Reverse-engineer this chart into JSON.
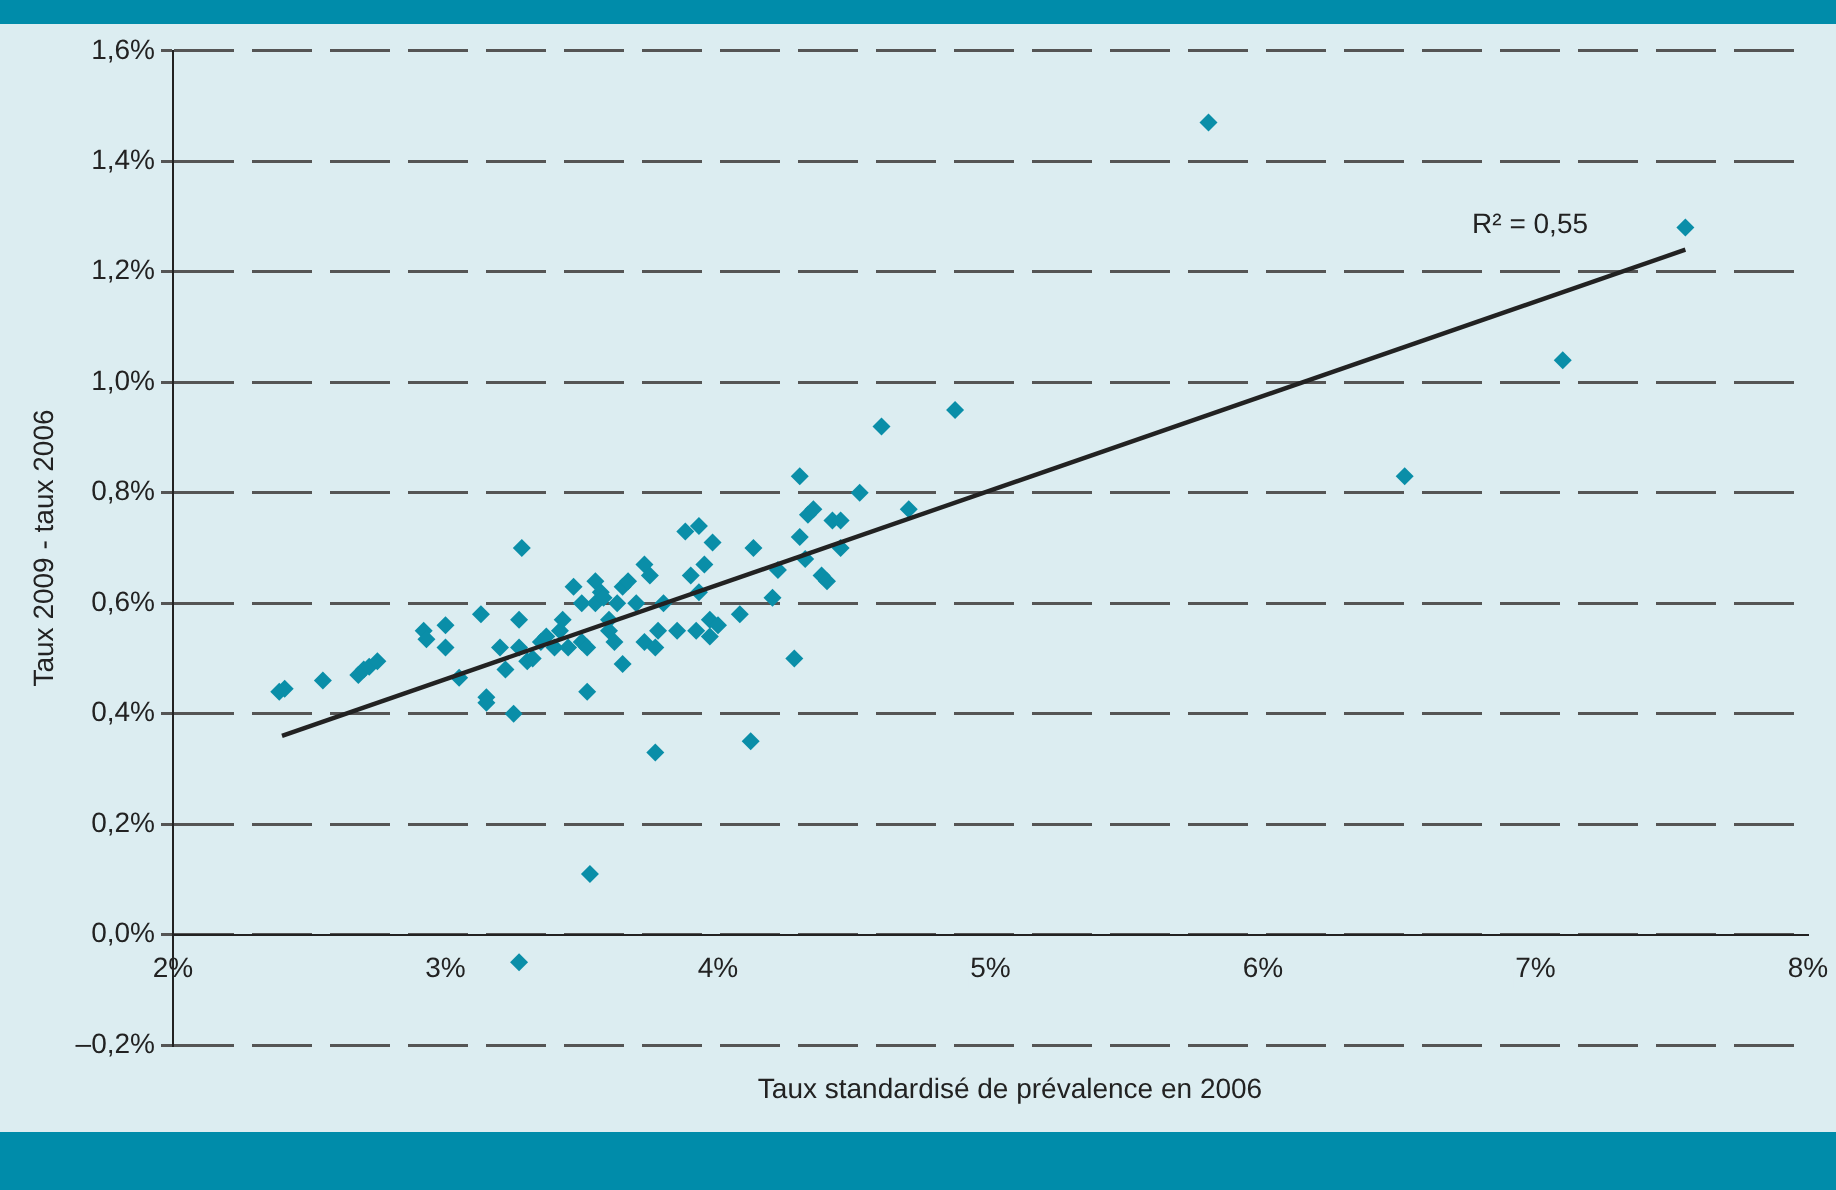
{
  "chart_data": {
    "type": "scatter",
    "xlabel": "Taux standardisé de prévalence en 2006",
    "ylabel": "Taux 2009 - taux 2006",
    "xlim": [
      2,
      8
    ],
    "xticks": [
      {
        "value": 2,
        "label": "2%"
      },
      {
        "value": 3,
        "label": "3%"
      },
      {
        "value": 4,
        "label": "4%"
      },
      {
        "value": 5,
        "label": "5%"
      },
      {
        "value": 6,
        "label": "6%"
      },
      {
        "value": 7,
        "label": "7%"
      },
      {
        "value": 8,
        "label": "8%"
      }
    ],
    "ylim": [
      -0.2,
      1.6
    ],
    "yticks": [
      {
        "value": -0.2,
        "label": "–0,2%"
      },
      {
        "value": 0,
        "label": "0,0%"
      },
      {
        "value": 0.2,
        "label": "0,2%"
      },
      {
        "value": 0.4,
        "label": "0,4%"
      },
      {
        "value": 0.6,
        "label": "0,6%"
      },
      {
        "value": 0.8,
        "label": "0,8%"
      },
      {
        "value": 1.0,
        "label": "1,0%"
      },
      {
        "value": 1.2,
        "label": "1,2%"
      },
      {
        "value": 1.4,
        "label": "1,4%"
      },
      {
        "value": 1.6,
        "label": "1,6%"
      }
    ],
    "grid": "y",
    "legend": false,
    "marker": "diamond",
    "series": [
      {
        "type": "scatter",
        "color": "#0a8ea8",
        "x": [
          2.39,
          2.41,
          2.55,
          2.68,
          2.7,
          2.72,
          2.75,
          2.92,
          2.93,
          3.0,
          3.0,
          3.05,
          3.13,
          3.15,
          3.15,
          3.2,
          3.22,
          3.25,
          3.27,
          3.27,
          3.28,
          3.3,
          3.32,
          3.35,
          3.37,
          3.4,
          3.42,
          3.43,
          3.45,
          3.47,
          3.5,
          3.5,
          3.52,
          3.52,
          3.53,
          3.27,
          3.55,
          3.55,
          3.57,
          3.58,
          3.6,
          3.6,
          3.62,
          3.63,
          3.65,
          3.65,
          3.67,
          3.7,
          3.73,
          3.73,
          3.75,
          3.77,
          3.77,
          3.78,
          3.8,
          3.85,
          3.88,
          3.9,
          3.92,
          3.93,
          3.93,
          3.95,
          3.97,
          3.97,
          3.98,
          4.0,
          4.08,
          4.12,
          4.13,
          4.2,
          4.22,
          4.28,
          4.3,
          4.3,
          4.32,
          4.33,
          4.35,
          4.38,
          4.4,
          4.42,
          4.45,
          4.45,
          4.52,
          4.6,
          4.7,
          4.87,
          5.8,
          6.52,
          7.1,
          7.55
        ],
        "values": [
          0.44,
          0.445,
          0.46,
          0.47,
          0.48,
          0.485,
          0.495,
          0.55,
          0.535,
          0.56,
          0.52,
          0.465,
          0.58,
          0.43,
          0.42,
          0.52,
          0.48,
          0.4,
          0.57,
          0.52,
          0.7,
          0.495,
          0.5,
          0.53,
          0.54,
          0.52,
          0.55,
          0.57,
          0.52,
          0.63,
          0.53,
          0.6,
          0.52,
          0.44,
          0.11,
          -0.05,
          0.64,
          0.6,
          0.62,
          0.61,
          0.57,
          0.55,
          0.53,
          0.6,
          0.63,
          0.49,
          0.64,
          0.6,
          0.67,
          0.53,
          0.65,
          0.52,
          0.33,
          0.55,
          0.6,
          0.55,
          0.73,
          0.65,
          0.55,
          0.74,
          0.62,
          0.67,
          0.57,
          0.54,
          0.71,
          0.56,
          0.58,
          0.35,
          0.7,
          0.61,
          0.66,
          0.5,
          0.83,
          0.72,
          0.68,
          0.76,
          0.77,
          0.65,
          0.64,
          0.75,
          0.75,
          0.7,
          0.8,
          0.92,
          0.77,
          0.95,
          1.47,
          0.83,
          1.04,
          1.28
        ]
      },
      {
        "type": "line",
        "color": "#222222",
        "marker": "none",
        "x": [
          2.4,
          7.55
        ],
        "values": [
          0.36,
          1.24
        ]
      }
    ],
    "annotations": [
      "R² = 0,55"
    ]
  }
}
